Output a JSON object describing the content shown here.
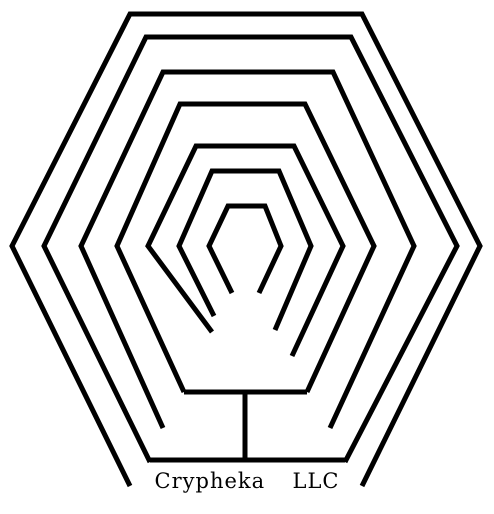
{
  "logo": {
    "company_name": "Crypheka  LLC",
    "stroke_color": "#000000",
    "background_color": "#ffffff",
    "icon": "nested-hexagon-maze-icon"
  }
}
